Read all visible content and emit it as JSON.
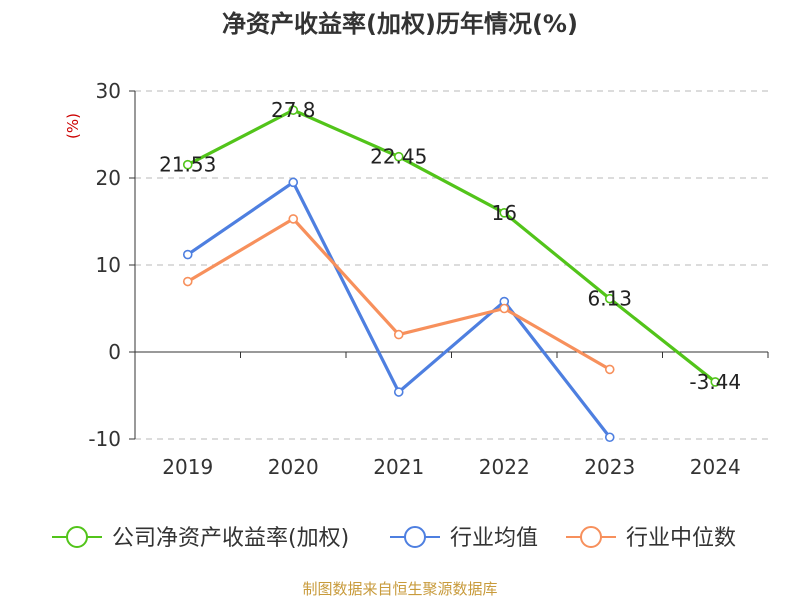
{
  "chart_data": {
    "type": "line",
    "title": "净资产收益率(加权)历年情况(%)",
    "ylabel": "(%)",
    "xlabel": "",
    "categories": [
      "2019",
      "2020",
      "2021",
      "2022",
      "2023",
      "2024"
    ],
    "ylim": [
      -10,
      30
    ],
    "yticks": [
      -10,
      0,
      10,
      20,
      30
    ],
    "grid": "horizontal dashed",
    "legend_position": "bottom",
    "series": [
      {
        "name": "公司净资产收益率(加权)",
        "color": "#52c41a",
        "labeled": true,
        "values": [
          21.53,
          27.8,
          22.45,
          16,
          6.13,
          -3.44
        ],
        "labels": [
          "21.53",
          "27.8",
          "22.45",
          "16",
          "6.13",
          "-3.44"
        ]
      },
      {
        "name": "行业均值",
        "color": "#4e7fe0",
        "labeled": false,
        "values": [
          11.2,
          19.5,
          -4.6,
          5.8,
          -9.8,
          null
        ]
      },
      {
        "name": "行业中位数",
        "color": "#f7905c",
        "labeled": false,
        "values": [
          8.1,
          15.3,
          2.0,
          5.0,
          -2.0,
          null
        ]
      }
    ],
    "source_note": "制图数据来自恒生聚源数据库"
  },
  "colors": {
    "ylabel": "#cc0000",
    "source_note": "#c89b3c",
    "grid": "#c8c8c8",
    "axis": "#333333"
  }
}
